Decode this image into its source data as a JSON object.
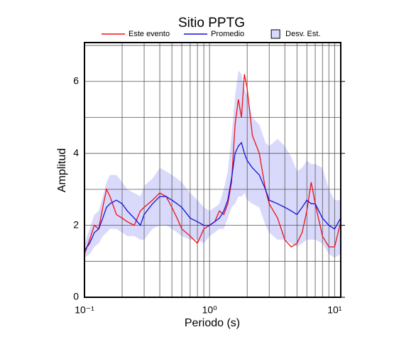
{
  "chart_data": {
    "type": "line",
    "title": "Sitio PPTG",
    "x_label": "Periodo (s)",
    "y_label": "Amplitud",
    "x_log": true,
    "grid": true,
    "legend": "top",
    "xlim": [
      0.1,
      11.2
    ],
    "ylim": [
      0,
      7.08
    ],
    "xticks": [
      {
        "value": 0.1,
        "label": "10⁻¹"
      },
      {
        "value": 1,
        "label": "10⁰"
      },
      {
        "value": 10,
        "label": "10¹"
      }
    ],
    "xminor": [
      0.2,
      0.3,
      0.4,
      0.5,
      0.6,
      0.7,
      0.8,
      0.9,
      2,
      3,
      4,
      5,
      6,
      7,
      8,
      9
    ],
    "yticks": [
      0,
      2,
      4,
      6
    ],
    "yminor": [
      1,
      3,
      5,
      7
    ],
    "x": [
      0.1,
      0.11,
      0.12,
      0.13,
      0.14,
      0.15,
      0.16,
      0.18,
      0.2,
      0.22,
      0.25,
      0.28,
      0.3,
      0.35,
      0.4,
      0.45,
      0.5,
      0.55,
      0.6,
      0.7,
      0.8,
      0.9,
      1.0,
      1.1,
      1.2,
      1.3,
      1.4,
      1.5,
      1.6,
      1.7,
      1.8,
      1.9,
      2.0,
      2.2,
      2.5,
      2.8,
      3.0,
      3.5,
      4.0,
      4.5,
      5,
      5.5,
      6,
      6.5,
      7,
      8,
      9,
      10,
      11.2
    ],
    "series": [
      {
        "name": "Este evento",
        "color": "#ee1111",
        "values": [
          1.2,
          1.6,
          2.0,
          1.9,
          2.5,
          3.0,
          2.8,
          2.3,
          2.2,
          2.1,
          2.0,
          2.4,
          2.5,
          2.7,
          2.9,
          2.8,
          2.5,
          2.2,
          1.9,
          1.7,
          1.5,
          1.9,
          2.0,
          2.1,
          2.4,
          2.3,
          2.6,
          3.2,
          4.8,
          5.5,
          5.0,
          6.2,
          5.8,
          4.5,
          4.0,
          3.0,
          2.6,
          2.2,
          1.6,
          1.4,
          1.5,
          1.8,
          2.4,
          3.2,
          2.6,
          1.7,
          1.4,
          1.4,
          2.1
        ]
      },
      {
        "name": "Promedio",
        "color": "#1111dd",
        "values": [
          1.3,
          1.5,
          1.8,
          1.9,
          2.2,
          2.5,
          2.6,
          2.7,
          2.6,
          2.4,
          2.2,
          2.0,
          2.3,
          2.6,
          2.8,
          2.8,
          2.7,
          2.6,
          2.5,
          2.2,
          2.1,
          2.0,
          2.0,
          2.1,
          2.2,
          2.4,
          2.7,
          3.3,
          4.0,
          4.2,
          4.3,
          4.0,
          3.8,
          3.6,
          3.4,
          3.0,
          2.7,
          2.6,
          2.5,
          2.4,
          2.3,
          2.5,
          2.7,
          2.6,
          2.6,
          2.2,
          2.0,
          1.9,
          2.2
        ]
      },
      {
        "name": "Desv. Est.",
        "color": "#d9d9fb",
        "lower": [
          1.1,
          1.2,
          1.4,
          1.5,
          1.7,
          1.8,
          1.9,
          1.9,
          1.8,
          1.7,
          1.7,
          1.6,
          1.6,
          1.9,
          2.0,
          2.0,
          1.9,
          1.8,
          1.7,
          1.6,
          1.6,
          1.5,
          1.7,
          1.8,
          1.9,
          1.9,
          2.2,
          2.5,
          2.6,
          2.8,
          2.8,
          2.9,
          2.7,
          2.6,
          2.5,
          2.0,
          1.8,
          1.6,
          1.6,
          1.5,
          1.4,
          1.5,
          1.6,
          1.6,
          1.6,
          1.5,
          1.2,
          1.1,
          1.2
        ],
        "upper": [
          1.5,
          1.9,
          2.3,
          2.4,
          2.8,
          3.2,
          3.4,
          3.4,
          3.2,
          3.0,
          2.9,
          2.8,
          3.1,
          3.3,
          3.6,
          3.5,
          3.4,
          3.3,
          3.2,
          2.9,
          2.7,
          2.5,
          2.4,
          2.5,
          2.6,
          3.0,
          3.5,
          4.5,
          5.6,
          6.3,
          6.2,
          5.8,
          5.6,
          5.0,
          4.8,
          4.3,
          4.2,
          4.4,
          4.2,
          3.9,
          3.5,
          3.6,
          3.8,
          3.7,
          3.7,
          3.6,
          3.0,
          2.7,
          2.7
        ]
      }
    ]
  }
}
